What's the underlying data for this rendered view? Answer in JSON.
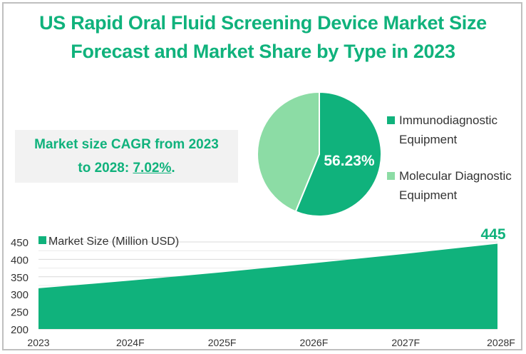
{
  "title": {
    "line1": "US Rapid Oral Fluid Screening Device Market Size",
    "line2": "Forecast and Market Share by Type in 2023"
  },
  "cagr_box": {
    "line1": "Market size CAGR from 2023",
    "line2_prefix": "to 2028: ",
    "value": "7.02%",
    "suffix": "."
  },
  "colors": {
    "primary": "#10b27c",
    "secondary": "#8cdca5",
    "title": "#10b27c",
    "box_bg": "#f2f2f2"
  },
  "chart_data": [
    {
      "type": "pie",
      "title": "Market Share by Type in 2023",
      "slices": [
        {
          "label": "Immunodiagnostic Equipment",
          "value": 56.23,
          "color": "#10b27c"
        },
        {
          "label": "Molecular Diagnostic Equipment",
          "value": 43.77,
          "color": "#8cdca5"
        }
      ],
      "data_labels": [
        "56.23%"
      ],
      "legend": {
        "placement": "right",
        "entries": [
          {
            "line1": "Immunodiagnostic",
            "line2": "Equipment"
          },
          {
            "line1": "Molecular Diagnostic",
            "line2": "Equipment"
          }
        ]
      }
    },
    {
      "type": "area",
      "title": "",
      "categories": [
        "2023",
        "2024F",
        "2025F",
        "2026F",
        "2027F",
        "2028F"
      ],
      "series": [
        {
          "name": "Market Size (Million USD)",
          "values": [
            317,
            339,
            363,
            389,
            416,
            445
          ],
          "color": "#10b27c"
        }
      ],
      "xlabel": "",
      "ylabel": "",
      "ylim": [
        200,
        450
      ],
      "yticks": [
        "200",
        "250",
        "300",
        "350",
        "400",
        "450"
      ],
      "grid": true,
      "legend": {
        "placement": "top-left",
        "entry": "Market Size (Million USD)"
      },
      "data_labels": [
        {
          "category": "2028F",
          "text": "445"
        }
      ]
    }
  ]
}
